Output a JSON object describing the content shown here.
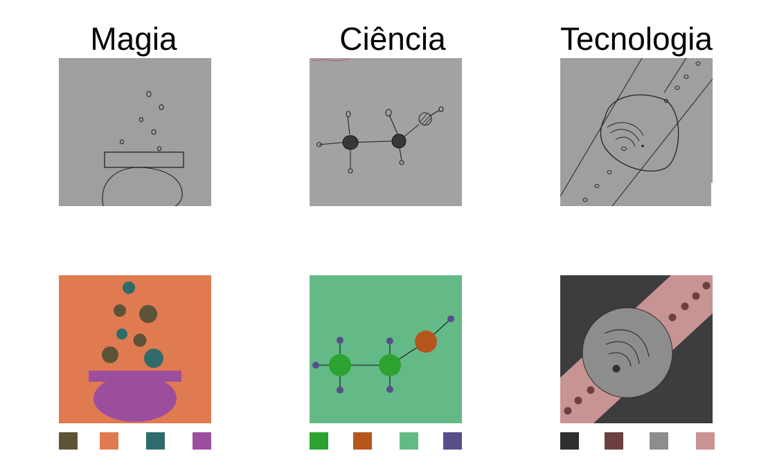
{
  "panels": [
    {
      "title": "Magia",
      "palette": [
        "#5d5337",
        "#e07a50",
        "#2f6b6a",
        "#9c4e9e"
      ],
      "art_background": "#e07a50"
    },
    {
      "title": "Ciência",
      "palette": [
        "#2ca330",
        "#b5561c",
        "#64ba87",
        "#564f8a"
      ],
      "art_background": "#64ba87"
    },
    {
      "title": "Tecnologia",
      "palette": [
        "#2f2e30",
        "#6e3f40",
        "#8d8d8d",
        "#c89393"
      ],
      "art_background": "#3d3c3f"
    }
  ],
  "sketch_background": "#a09e9f"
}
